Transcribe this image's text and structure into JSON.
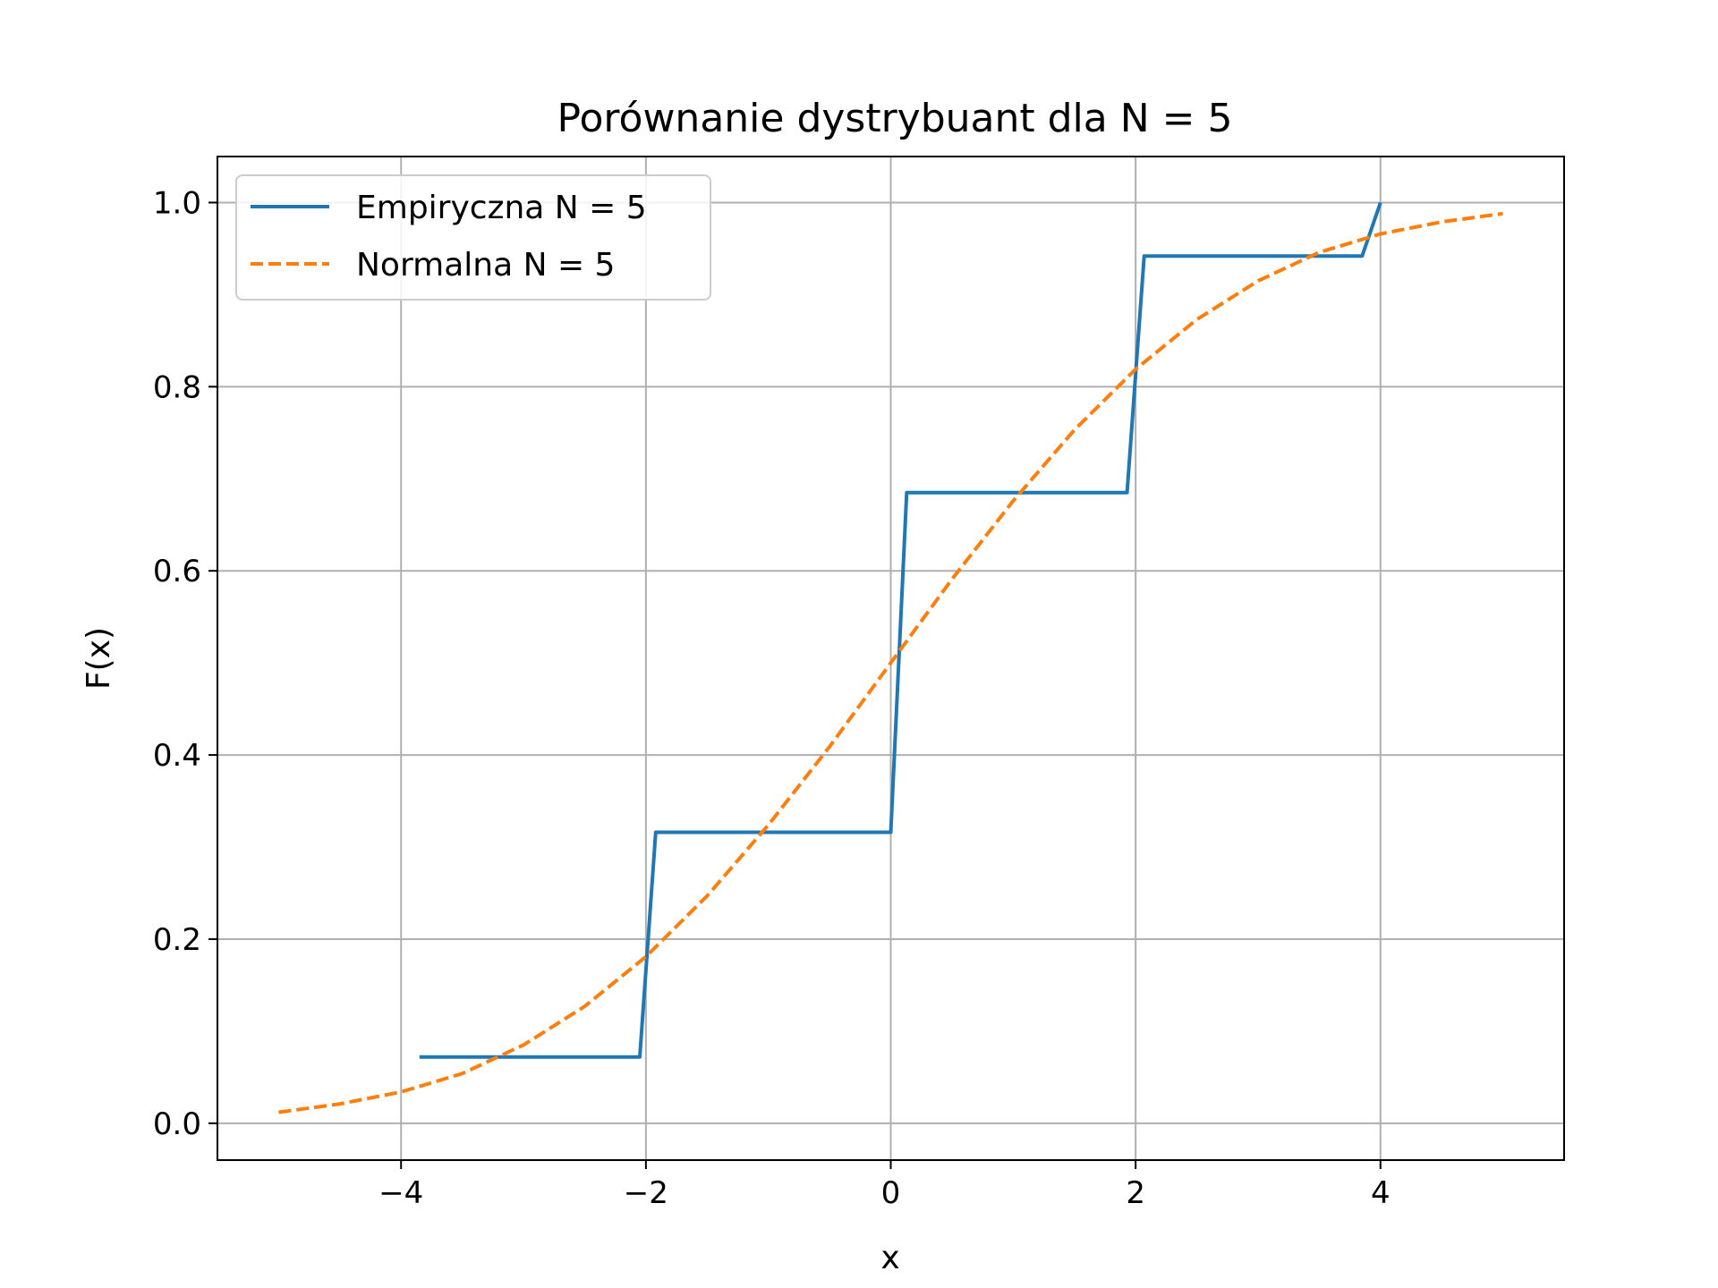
{
  "chart_data": {
    "type": "line",
    "title": "Porównanie dystrybuant dla N = 5",
    "xlabel": "x",
    "ylabel": "F(x)",
    "xlim": [
      -5.5,
      5.5
    ],
    "ylim": [
      -0.04,
      1.05
    ],
    "grid": true,
    "legend_position": "top-left",
    "xticks": [
      -4,
      -2,
      0,
      2,
      4
    ],
    "xtick_labels": [
      "−4",
      "−2",
      "0",
      "2",
      "4"
    ],
    "yticks": [
      0.0,
      0.2,
      0.4,
      0.6,
      0.8,
      1.0
    ],
    "ytick_labels": [
      "0.0",
      "0.2",
      "0.4",
      "0.6",
      "0.8",
      "1.0"
    ],
    "series": [
      {
        "name": "Empiryczna N = 5",
        "color": "#1f77b4",
        "style": "solid",
        "x": [
          -3.85,
          -2.05,
          -1.92,
          0.0,
          0.13,
          1.93,
          2.07,
          3.85,
          4.0
        ],
        "y": [
          0.072,
          0.072,
          0.316,
          0.316,
          0.685,
          0.685,
          0.942,
          0.942,
          1.0
        ]
      },
      {
        "name": "Normalna N = 5",
        "color": "#ff7f0e",
        "style": "dashed",
        "x": [
          -5.0,
          -4.5,
          -4.0,
          -3.5,
          -3.0,
          -2.5,
          -2.0,
          -1.5,
          -1.0,
          -0.5,
          0.0,
          0.5,
          1.0,
          1.5,
          2.0,
          2.5,
          3.0,
          3.5,
          4.0,
          4.5,
          5.0
        ],
        "y": [
          0.012,
          0.021,
          0.034,
          0.054,
          0.085,
          0.127,
          0.181,
          0.247,
          0.324,
          0.409,
          0.5,
          0.591,
          0.676,
          0.753,
          0.819,
          0.873,
          0.915,
          0.946,
          0.966,
          0.979,
          0.988
        ]
      }
    ]
  }
}
